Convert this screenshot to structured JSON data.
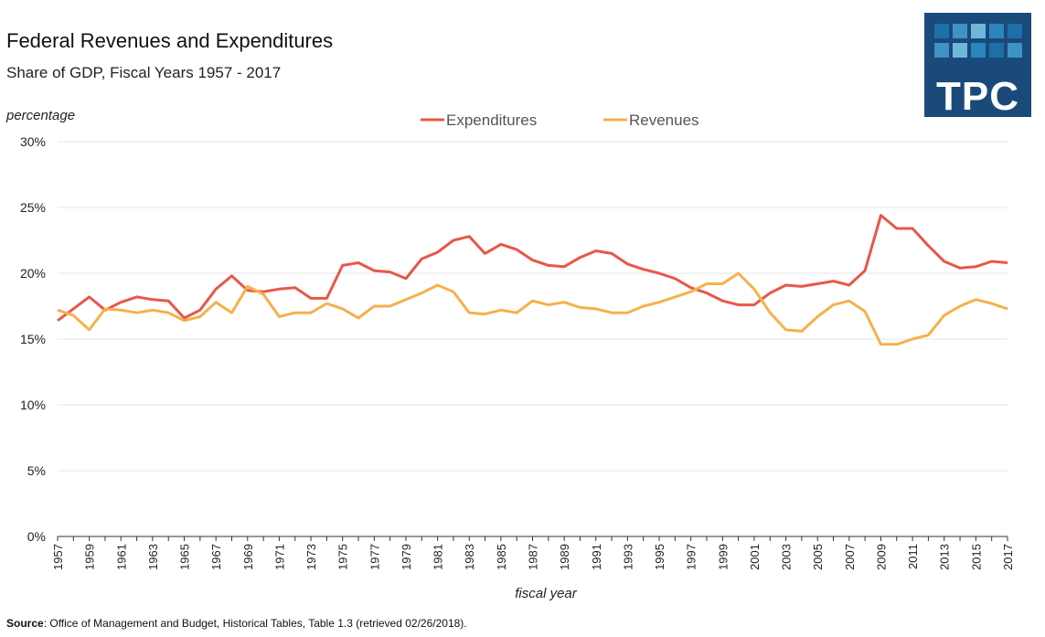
{
  "header": {
    "title": "Federal Revenues and Expenditures",
    "subtitle": "Share of GDP, Fiscal Years 1957 - 2017"
  },
  "logo": {
    "text": "TPC",
    "bg_color": "#1a4a7a",
    "tile_colors": [
      "#1e6fa8",
      "#3f93c4",
      "#6fb6db",
      "#2a86bd"
    ]
  },
  "source": {
    "label": "Source",
    "text": ": Office of Management and Budget, Historical Tables, Table 1.3 (retrieved 02/26/2018)."
  },
  "chart_data": {
    "type": "line",
    "ylabel": "percentage",
    "xlabel": "fiscal year",
    "ylim": [
      0,
      30
    ],
    "y_ticks": [
      0,
      5,
      10,
      15,
      20,
      25,
      30
    ],
    "y_tick_labels": [
      "0%",
      "5%",
      "10%",
      "15%",
      "20%",
      "25%",
      "30%"
    ],
    "grid": true,
    "legend_position": "top-center",
    "x": [
      1957,
      1958,
      1959,
      1960,
      1961,
      1962,
      1963,
      1964,
      1965,
      1966,
      1967,
      1968,
      1969,
      1970,
      1971,
      1972,
      1973,
      1974,
      1975,
      1976,
      1977,
      1978,
      1979,
      1980,
      1981,
      1982,
      1983,
      1984,
      1985,
      1986,
      1987,
      1988,
      1989,
      1990,
      1991,
      1992,
      1993,
      1994,
      1995,
      1996,
      1997,
      1998,
      1999,
      2000,
      2001,
      2002,
      2003,
      2004,
      2005,
      2006,
      2007,
      2008,
      2009,
      2010,
      2011,
      2012,
      2013,
      2014,
      2015,
      2016,
      2017
    ],
    "x_tick_labels": [
      "1957",
      "1959",
      "1961",
      "1963",
      "1965",
      "1967",
      "1969",
      "1971",
      "1973",
      "1975",
      "1977",
      "1979",
      "1981",
      "1983",
      "1985",
      "1987",
      "1989",
      "1991",
      "1993",
      "1995",
      "1997",
      "1999",
      "2001",
      "2003",
      "2005",
      "2007",
      "2009",
      "2011",
      "2013",
      "2015",
      "2017"
    ],
    "series": [
      {
        "name": "Expenditures",
        "color": "#e8574a",
        "values": [
          16.4,
          17.3,
          18.2,
          17.2,
          17.8,
          18.2,
          18.0,
          17.9,
          16.6,
          17.2,
          18.8,
          19.8,
          18.7,
          18.6,
          18.8,
          18.9,
          18.1,
          18.1,
          20.6,
          20.8,
          20.2,
          20.1,
          19.6,
          21.1,
          21.6,
          22.5,
          22.8,
          21.5,
          22.2,
          21.8,
          21.0,
          20.6,
          20.5,
          21.2,
          21.7,
          21.5,
          20.7,
          20.3,
          20.0,
          19.6,
          18.9,
          18.5,
          17.9,
          17.6,
          17.6,
          18.5,
          19.1,
          19.0,
          19.2,
          19.4,
          19.1,
          20.2,
          24.4,
          23.4,
          23.4,
          22.1,
          20.9,
          20.4,
          20.5,
          20.9,
          20.8
        ]
      },
      {
        "name": "Revenues",
        "color": "#f5b14b",
        "values": [
          17.2,
          16.8,
          15.7,
          17.3,
          17.2,
          17.0,
          17.2,
          17.0,
          16.4,
          16.7,
          17.8,
          17.0,
          19.0,
          18.4,
          16.7,
          17.0,
          17.0,
          17.7,
          17.3,
          16.6,
          17.5,
          17.5,
          18.0,
          18.5,
          19.1,
          18.6,
          17.0,
          16.9,
          17.2,
          17.0,
          17.9,
          17.6,
          17.8,
          17.4,
          17.3,
          17.0,
          17.0,
          17.5,
          17.8,
          18.2,
          18.6,
          19.2,
          19.2,
          20.0,
          18.8,
          17.0,
          15.7,
          15.6,
          16.7,
          17.6,
          17.9,
          17.1,
          14.6,
          14.6,
          15.0,
          15.3,
          16.8,
          17.5,
          18.0,
          17.7,
          17.3
        ]
      }
    ]
  }
}
